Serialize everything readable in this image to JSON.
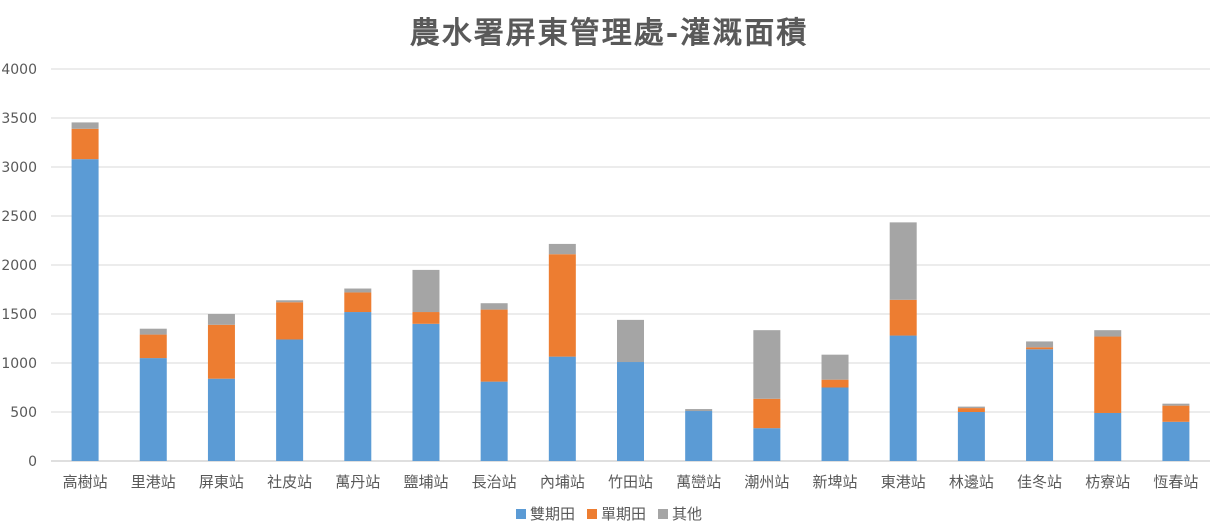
{
  "chart_data": {
    "type": "bar",
    "stacked": true,
    "title": "農水署屏東管理處-灌溉面積",
    "categories": [
      "高樹站",
      "里港站",
      "屏東站",
      "社皮站",
      "萬丹站",
      "鹽埔站",
      "長治站",
      "內埔站",
      "竹田站",
      "萬巒站",
      "潮州站",
      "新埤站",
      "東港站",
      "林邊站",
      "佳冬站",
      "枋寮站",
      "恆春站"
    ],
    "series": [
      {
        "name": "雙期田",
        "color": "#5b9bd5",
        "values": [
          3080,
          1050,
          840,
          1240,
          1520,
          1400,
          810,
          1065,
          1010,
          510,
          335,
          750,
          1280,
          500,
          1140,
          490,
          400
        ]
      },
      {
        "name": "單期田",
        "color": "#ed7d31",
        "values": [
          310,
          240,
          550,
          380,
          200,
          120,
          735,
          1045,
          0,
          0,
          300,
          80,
          365,
          40,
          20,
          780,
          165
        ]
      },
      {
        "name": "其他",
        "color": "#a5a5a5",
        "values": [
          65,
          60,
          110,
          20,
          40,
          430,
          65,
          105,
          430,
          20,
          700,
          255,
          790,
          15,
          60,
          65,
          20
        ]
      }
    ],
    "ylim": [
      0,
      4000
    ],
    "yticks": [
      0,
      500,
      1000,
      1500,
      2000,
      2500,
      3000,
      3500,
      4000
    ],
    "grid": true,
    "legend_position": "bottom"
  }
}
